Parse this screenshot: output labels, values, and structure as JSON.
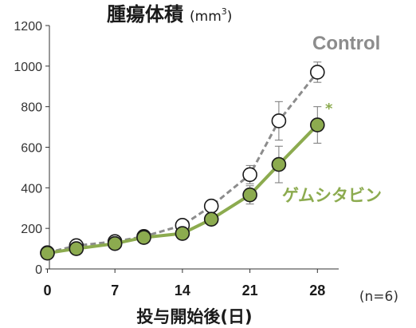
{
  "chart_data": {
    "type": "line",
    "title": "腫瘍体積",
    "title_unit_prefix": "(mm",
    "title_unit_sup": "3",
    "title_unit_suffix": ")",
    "xlabel": "投与開始後(日)",
    "ylabel": "",
    "n_note": "(n=6)",
    "x_ticks": [
      "0",
      "7",
      "14",
      "21",
      "28"
    ],
    "y_ticks": [
      "0",
      "200",
      "400",
      "600",
      "800",
      "1000",
      "1200"
    ],
    "xlim": [
      0,
      30
    ],
    "ylim": [
      0,
      1200
    ],
    "grid": false,
    "significance_marker": "*",
    "series": [
      {
        "name": "Control",
        "color": "#8c8c8c",
        "line_style": "dashed",
        "marker": "open-circle",
        "x": [
          0,
          3,
          7,
          10,
          14,
          17,
          21,
          24,
          28
        ],
        "y": [
          80,
          115,
          135,
          160,
          215,
          310,
          465,
          730,
          970
        ],
        "error": [
          0,
          0,
          0,
          0,
          15,
          20,
          45,
          95,
          50
        ]
      },
      {
        "name": "ゲムシタビン",
        "color": "#8cab4f",
        "line_style": "solid",
        "marker": "filled-circle",
        "x": [
          0,
          3,
          7,
          10,
          14,
          17,
          21,
          24,
          28
        ],
        "y": [
          78,
          100,
          125,
          155,
          175,
          245,
          365,
          515,
          710
        ],
        "error": [
          0,
          0,
          0,
          0,
          0,
          20,
          45,
          90,
          90
        ]
      }
    ]
  }
}
